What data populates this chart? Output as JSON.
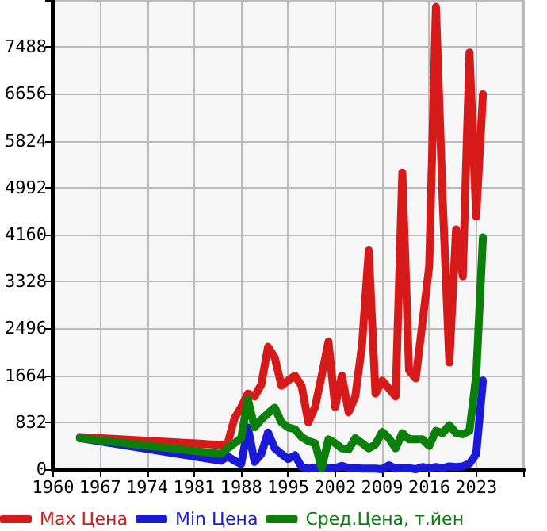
{
  "chart_data": {
    "type": "line",
    "xlim": [
      1960,
      2030
    ],
    "xticks": [
      1960,
      1967,
      1974,
      1981,
      1988,
      1995,
      2002,
      2009,
      2016,
      2023,
      {
        "value": 2030,
        "label": null
      }
    ],
    "ylim": [
      0,
      8320
    ],
    "yticks": [
      0,
      832,
      1664,
      2496,
      3328,
      4160,
      4992,
      5824,
      6656,
      7488,
      {
        "value": 8320,
        "label": null
      }
    ],
    "grid": true,
    "legend": "bottom",
    "marker": "none",
    "line_style": "solid",
    "series": [
      {
        "name": "Max Цена",
        "color": "#d61a1a",
        "x": [
          1964,
          1985,
          1986,
          1987,
          1988,
          1989,
          1990,
          1991,
          1992,
          1993,
          1994,
          1995,
          1996,
          1997,
          1998,
          1999,
          2000,
          2001,
          2002,
          2003,
          2004,
          2005,
          2006,
          2007,
          2008,
          2009,
          2010,
          2011,
          2012,
          2013,
          2014,
          2015,
          2016,
          2017,
          2018,
          2019,
          2020,
          2021,
          2022,
          2023,
          2024
        ],
        "values": [
          570,
          430,
          460,
          900,
          1100,
          1340,
          1290,
          1500,
          2170,
          1980,
          1480,
          1570,
          1660,
          1480,
          830,
          1100,
          1660,
          2260,
          1100,
          1660,
          1010,
          1290,
          2210,
          3880,
          1340,
          1570,
          1430,
          1290,
          5260,
          1750,
          1610,
          2600,
          3600,
          8200,
          4800,
          1890,
          4250,
          3420,
          7390,
          4480,
          6650
        ]
      },
      {
        "name": "Min Цена",
        "color": "#1a1ad6",
        "x": [
          1964,
          1985,
          1986,
          1987,
          1988,
          1989,
          1990,
          1991,
          1992,
          1993,
          1994,
          1995,
          1996,
          1997,
          1998,
          1999,
          2000,
          2001,
          2002,
          2003,
          2004,
          2005,
          2006,
          2007,
          2008,
          2009,
          2010,
          2011,
          2012,
          2013,
          2014,
          2015,
          2016,
          2017,
          2018,
          2019,
          2020,
          2021,
          2022,
          2023,
          2024
        ],
        "values": [
          550,
          150,
          230,
          150,
          90,
          740,
          130,
          270,
          650,
          370,
          270,
          180,
          250,
          40,
          10,
          20,
          20,
          20,
          20,
          60,
          20,
          20,
          10,
          10,
          10,
          0,
          70,
          10,
          20,
          20,
          0,
          40,
          20,
          40,
          20,
          50,
          40,
          50,
          100,
          270,
          1570
        ]
      },
      {
        "name": "Сред.Цена, т.йен",
        "color": "#0a7f0a",
        "x": [
          1964,
          1985,
          1986,
          1987,
          1988,
          1989,
          1990,
          1991,
          1992,
          1993,
          1994,
          1995,
          1996,
          1997,
          1998,
          1999,
          2000,
          2001,
          2002,
          2003,
          2004,
          2005,
          2006,
          2007,
          2008,
          2009,
          2010,
          2011,
          2012,
          2013,
          2014,
          2015,
          2016,
          2017,
          2018,
          2019,
          2020,
          2021,
          2022,
          2023,
          2024
        ],
        "values": [
          550,
          270,
          370,
          460,
          550,
          1240,
          740,
          880,
          990,
          1090,
          830,
          740,
          710,
          570,
          500,
          460,
          20,
          530,
          460,
          370,
          350,
          550,
          460,
          370,
          440,
          660,
          550,
          370,
          640,
          530,
          530,
          530,
          410,
          680,
          640,
          780,
          640,
          620,
          680,
          1660,
          4110
        ]
      }
    ]
  }
}
